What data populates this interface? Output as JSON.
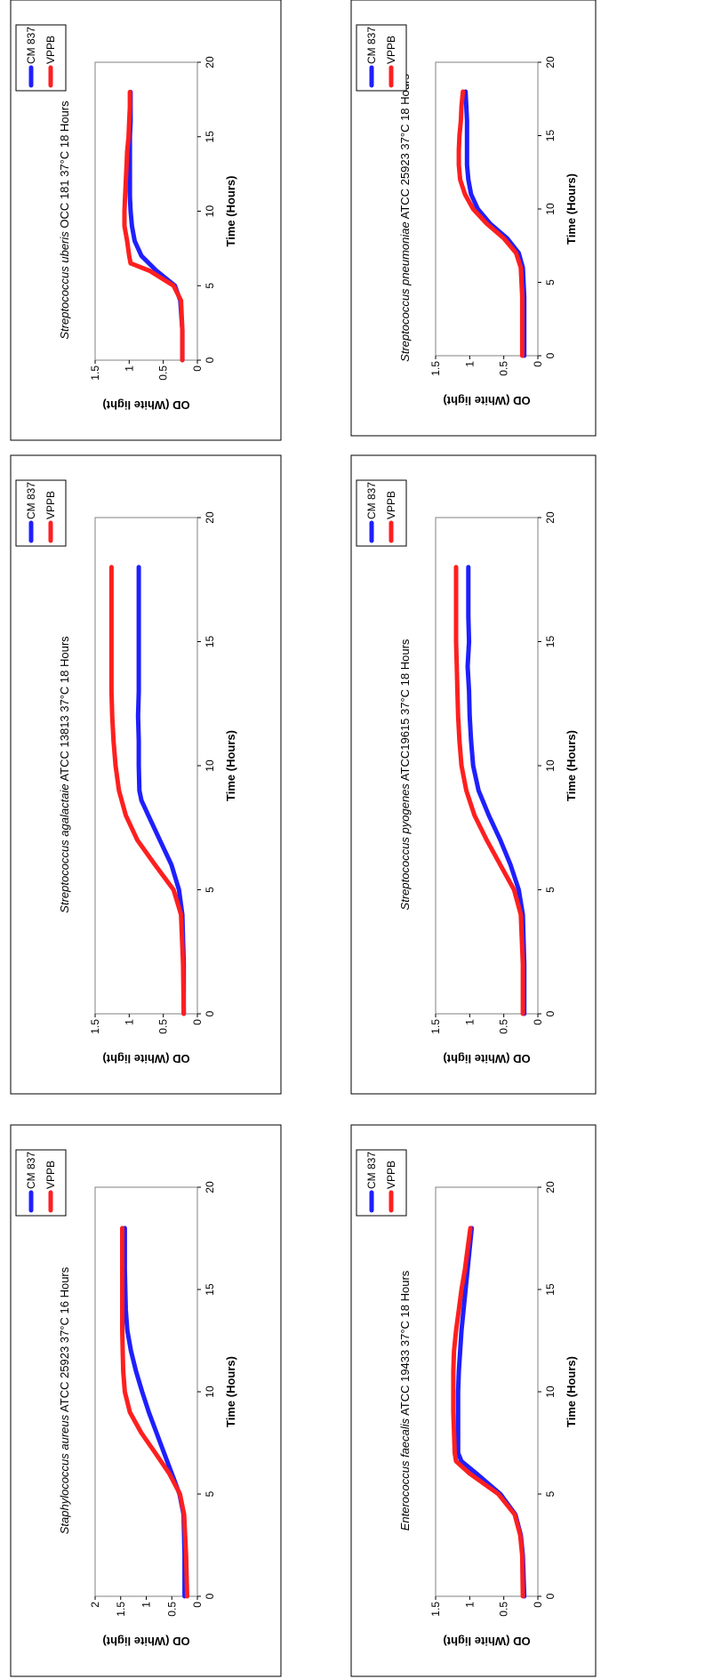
{
  "chart_data": [
    {
      "type": "line",
      "title_italic": "Staphylococcus aureus",
      "title_rest": " ATCC 25923  37°C 16 Hours",
      "xlabel": "Time (Hours)",
      "ylabel": "OD (White light)",
      "xlim": [
        0,
        20
      ],
      "ylim": [
        0,
        2
      ],
      "xticks": [
        0,
        5,
        10,
        15,
        20
      ],
      "yticks": [
        0,
        0.5,
        1,
        1.5,
        2
      ],
      "ytick_labels": [
        "0",
        "0.5",
        "1",
        "1.5",
        "2"
      ],
      "legend_position": "top-right",
      "series": [
        {
          "name": "CM 837",
          "color": "#1f1fff",
          "x": [
            0,
            2,
            4,
            5,
            6,
            7,
            8,
            9,
            10,
            11,
            12,
            13,
            14,
            15,
            16,
            17,
            18
          ],
          "y": [
            0.25,
            0.25,
            0.27,
            0.35,
            0.5,
            0.65,
            0.8,
            0.95,
            1.08,
            1.2,
            1.3,
            1.37,
            1.4,
            1.41,
            1.42,
            1.42,
            1.42
          ]
        },
        {
          "name": "VPPB",
          "color": "#ff1f1f",
          "x": [
            0,
            2,
            4,
            5,
            6,
            7,
            8,
            9,
            10,
            11,
            12,
            13,
            14,
            15,
            16,
            17,
            18
          ],
          "y": [
            0.2,
            0.22,
            0.26,
            0.34,
            0.55,
            0.82,
            1.1,
            1.32,
            1.42,
            1.45,
            1.46,
            1.47,
            1.47,
            1.47,
            1.47,
            1.47,
            1.47
          ]
        }
      ]
    },
    {
      "type": "line",
      "title_italic": "Enterococcus  faecalis",
      "title_rest": "  ATCC 19433  37°C 18 Hours",
      "xlabel": "Time (Hours)",
      "ylabel": "OD (White light)",
      "xlim": [
        0,
        20
      ],
      "ylim": [
        0,
        1.5
      ],
      "xticks": [
        0,
        5,
        10,
        15,
        20
      ],
      "yticks": [
        0,
        0.5,
        1,
        1.5
      ],
      "ytick_labels": [
        "0",
        "0.5",
        "1",
        "1.5"
      ],
      "legend_position": "top-right",
      "series": [
        {
          "name": "CM 837",
          "color": "#1f1fff",
          "x": [
            0,
            2,
            3,
            4,
            5,
            6,
            6.6,
            7,
            8,
            9,
            10,
            11,
            12,
            13,
            14,
            15,
            16,
            17,
            18
          ],
          "y": [
            0.2,
            0.22,
            0.25,
            0.33,
            0.55,
            0.9,
            1.12,
            1.17,
            1.17,
            1.17,
            1.17,
            1.16,
            1.14,
            1.12,
            1.09,
            1.06,
            1.03,
            1.0,
            0.97
          ]
        },
        {
          "name": "VPPB",
          "color": "#ff1f1f",
          "x": [
            0,
            2,
            3,
            4,
            5,
            6,
            6.6,
            7,
            8,
            9,
            10,
            11,
            12,
            13,
            14,
            15,
            16,
            17,
            18
          ],
          "y": [
            0.22,
            0.23,
            0.26,
            0.34,
            0.58,
            1.0,
            1.2,
            1.22,
            1.23,
            1.24,
            1.24,
            1.24,
            1.23,
            1.2,
            1.16,
            1.12,
            1.07,
            1.03,
            0.99
          ]
        }
      ]
    },
    {
      "type": "line",
      "title_italic": "Streptococcus agalactaie",
      "title_rest": " ATCC 13813 37°C 18 Hours",
      "xlabel": "Time (Hours)",
      "ylabel": "OD (White light)",
      "xlim": [
        0,
        20
      ],
      "ylim": [
        0,
        1.5
      ],
      "xticks": [
        0,
        5,
        10,
        15,
        20
      ],
      "yticks": [
        0,
        0.5,
        1,
        1.5
      ],
      "ytick_labels": [
        "0",
        "0.5",
        "1",
        "1.5"
      ],
      "legend_position": "top-right",
      "series": [
        {
          "name": "CM 837",
          "color": "#1f1fff",
          "x": [
            0,
            2,
            4,
            5,
            6,
            7,
            8,
            8.6,
            9,
            10,
            11,
            12,
            13,
            14,
            15,
            16,
            17,
            18
          ],
          "y": [
            0.2,
            0.2,
            0.22,
            0.27,
            0.38,
            0.55,
            0.72,
            0.82,
            0.85,
            0.86,
            0.86,
            0.87,
            0.86,
            0.86,
            0.86,
            0.86,
            0.86,
            0.86
          ]
        },
        {
          "name": "VPPB",
          "color": "#ff1f1f",
          "x": [
            0,
            2,
            4,
            5,
            6,
            7,
            8,
            9,
            10,
            11,
            12,
            13,
            14,
            15,
            16,
            17,
            18
          ],
          "y": [
            0.2,
            0.21,
            0.24,
            0.35,
            0.62,
            0.88,
            1.05,
            1.15,
            1.2,
            1.23,
            1.25,
            1.26,
            1.26,
            1.26,
            1.26,
            1.26,
            1.26
          ]
        }
      ]
    },
    {
      "type": "line",
      "title_italic": "Streptococcus  pyogenes",
      "title_rest": " ATCC19615  37°C 18 Hours",
      "xlabel": "Time (Hours)",
      "ylabel": "OD (White light)",
      "xlim": [
        0,
        20
      ],
      "ylim": [
        0,
        1.5
      ],
      "xticks": [
        0,
        5,
        10,
        15,
        20
      ],
      "yticks": [
        0,
        0.5,
        1,
        1.5
      ],
      "ytick_labels": [
        "0",
        "0.5",
        "1",
        "1.5"
      ],
      "legend_position": "top-right",
      "series": [
        {
          "name": "CM 837",
          "color": "#1f1fff",
          "x": [
            0,
            2,
            4,
            5,
            6,
            7,
            8,
            9,
            10,
            11,
            12,
            13,
            14,
            15,
            16,
            17,
            18
          ],
          "y": [
            0.2,
            0.2,
            0.22,
            0.28,
            0.4,
            0.55,
            0.72,
            0.87,
            0.95,
            0.98,
            1.0,
            1.01,
            1.03,
            1.01,
            1.02,
            1.02,
            1.02
          ]
        },
        {
          "name": "VPPB",
          "color": "#ff1f1f",
          "x": [
            0,
            2,
            4,
            5,
            6,
            7,
            8,
            9,
            10,
            11,
            12,
            13,
            14,
            15,
            16,
            17,
            18
          ],
          "y": [
            0.22,
            0.22,
            0.25,
            0.35,
            0.55,
            0.75,
            0.93,
            1.05,
            1.12,
            1.15,
            1.17,
            1.18,
            1.19,
            1.2,
            1.2,
            1.2,
            1.2
          ]
        }
      ]
    },
    {
      "type": "line",
      "title_italic": "Streptococcus uberis",
      "title_rest": " OCC 181 37°C 18 Hours",
      "xlabel": "Time (Hours)",
      "ylabel": "OD (White light)",
      "xlim": [
        0,
        20
      ],
      "ylim": [
        0,
        1.5
      ],
      "xticks": [
        0,
        5,
        10,
        15,
        20
      ],
      "yticks": [
        0,
        0.5,
        1,
        1.5
      ],
      "ytick_labels": [
        "0",
        "0.5",
        "1",
        "1.5"
      ],
      "legend_position": "top-right",
      "series": [
        {
          "name": "CM 837",
          "color": "#1f1fff",
          "x": [
            0,
            2,
            4,
            5,
            6,
            7,
            8,
            9,
            10,
            11,
            12,
            13,
            14,
            15,
            16,
            17,
            18
          ],
          "y": [
            0.22,
            0.22,
            0.25,
            0.33,
            0.6,
            0.82,
            0.92,
            0.96,
            0.98,
            0.99,
            0.99,
            0.99,
            0.99,
            0.99,
            0.98,
            0.98,
            0.98
          ]
        },
        {
          "name": "VPPB",
          "color": "#ff1f1f",
          "x": [
            0,
            2,
            4,
            5,
            6,
            6.5,
            7,
            8,
            9,
            10,
            11,
            12,
            13,
            14,
            15,
            16,
            17,
            18
          ],
          "y": [
            0.22,
            0.22,
            0.24,
            0.35,
            0.7,
            0.98,
            1.0,
            1.03,
            1.07,
            1.07,
            1.06,
            1.05,
            1.04,
            1.03,
            1.01,
            1.0,
            0.99,
            0.99
          ]
        }
      ]
    },
    {
      "type": "line",
      "title_italic": "Streptococcus  pneumoniae",
      "title_rest": " ATCC 25923  37°C 18 Hours",
      "xlabel": "Time (Hours)",
      "ylabel": "OD (White light)",
      "xlim": [
        0,
        20
      ],
      "ylim": [
        0,
        1.5
      ],
      "xticks": [
        0,
        5,
        10,
        15,
        20
      ],
      "yticks": [
        0,
        0.5,
        1,
        1.5
      ],
      "ytick_labels": [
        "0",
        "0.5",
        "1",
        "1.5"
      ],
      "legend_position": "top-right",
      "series": [
        {
          "name": "CM 837",
          "color": "#1f1fff",
          "x": [
            0,
            2,
            4,
            6,
            7,
            8,
            9,
            10,
            11,
            12,
            13,
            14,
            15,
            16,
            17,
            18
          ],
          "y": [
            0.2,
            0.2,
            0.2,
            0.22,
            0.28,
            0.45,
            0.7,
            0.88,
            0.98,
            1.02,
            1.04,
            1.04,
            1.04,
            1.04,
            1.05,
            1.06
          ]
        },
        {
          "name": "VPPB",
          "color": "#ff1f1f",
          "x": [
            0,
            2,
            4,
            6,
            7,
            8,
            9,
            10,
            11,
            12,
            13,
            14,
            15,
            16,
            17,
            18
          ],
          "y": [
            0.23,
            0.23,
            0.23,
            0.25,
            0.32,
            0.5,
            0.75,
            0.95,
            1.07,
            1.14,
            1.16,
            1.16,
            1.15,
            1.13,
            1.12,
            1.1
          ]
        }
      ]
    }
  ]
}
